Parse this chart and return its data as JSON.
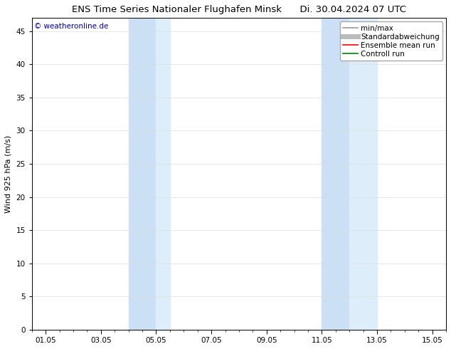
{
  "title_left": "ENS Time Series Nationaler Flughafen Minsk",
  "title_right": "Di. 30.04.2024 07 UTC",
  "ylabel": "Wind 925 hPa (m/s)",
  "watermark": "© weatheronline.de",
  "watermark_color": "#0000cc",
  "background_color": "#ffffff",
  "plot_bg_color": "#ffffff",
  "shaded_regions": [
    {
      "xstart": 4.0,
      "xend": 5.0,
      "color": "#cce0f5"
    },
    {
      "xstart": 5.0,
      "xend": 5.5,
      "color": "#ddeefa"
    },
    {
      "xstart": 11.0,
      "xend": 12.0,
      "color": "#cce0f5"
    },
    {
      "xstart": 12.0,
      "xend": 13.0,
      "color": "#ddeefa"
    }
  ],
  "xmin": 0.5,
  "xmax": 15.5,
  "ymin": 0,
  "ymax": 47,
  "yticks": [
    0,
    5,
    10,
    15,
    20,
    25,
    30,
    35,
    40,
    45
  ],
  "xtick_labels": [
    "01.05",
    "03.05",
    "05.05",
    "07.05",
    "09.05",
    "11.05",
    "13.05",
    "15.05"
  ],
  "xtick_positions": [
    1,
    3,
    5,
    7,
    9,
    11,
    13,
    15
  ],
  "legend_entries": [
    {
      "label": "min/max",
      "color": "#999999",
      "lw": 1.2,
      "linestyle": "-"
    },
    {
      "label": "Standardabweichung",
      "color": "#bbbbbb",
      "lw": 5,
      "linestyle": "-"
    },
    {
      "label": "Ensemble mean run",
      "color": "#ff0000",
      "lw": 1.2,
      "linestyle": "-"
    },
    {
      "label": "Controll run",
      "color": "#008000",
      "lw": 1.2,
      "linestyle": "-"
    }
  ],
  "title_fontsize": 9.5,
  "axis_fontsize": 8,
  "tick_fontsize": 7.5,
  "legend_fontsize": 7.5,
  "watermark_fontsize": 7.5
}
